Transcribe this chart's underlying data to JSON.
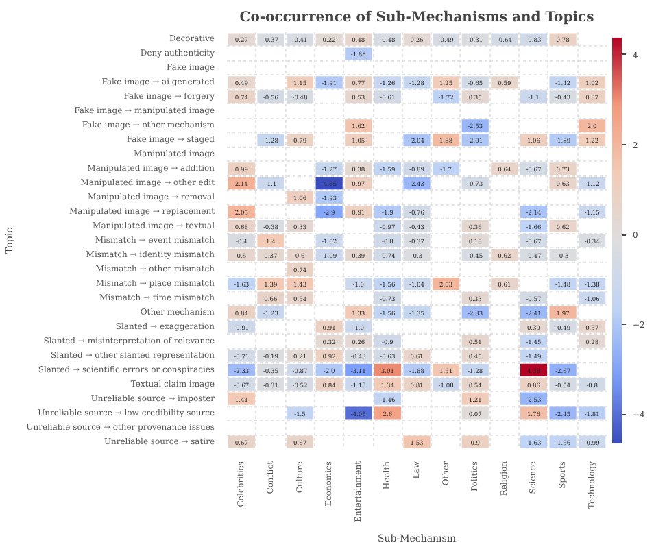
{
  "chart_data": {
    "type": "heatmap",
    "title": "Co-occurrence of Sub-Mechanisms and Topics",
    "xlabel": "Sub-Mechanism",
    "ylabel": "Topic",
    "categories": [
      "Celebrities",
      "Conflict",
      "Culture",
      "Economics",
      "Entertainment",
      "Health",
      "Law",
      "Other",
      "Politics",
      "Religion",
      "Science",
      "Sports",
      "Technology"
    ],
    "y_categories": [
      "Decorative",
      "Deny authenticity",
      "Fake image",
      "Fake image → ai generated",
      "Fake image → forgery",
      "Fake image → manipulated image",
      "Fake image → other mechanism",
      "Fake image → staged",
      "Manipulated image",
      "Manipulated image → addition",
      "Manipulated image → other edit",
      "Manipulated image → removal",
      "Manipulated image → replacement",
      "Manipulated image → textual",
      "Mismatch → event mismatch",
      "Mismatch → identity mismatch",
      "Mismatch → other mismatch",
      "Mismatch → place mismatch",
      "Mismatch → time mismatch",
      "Other mechanism",
      "Slanted → exaggeration",
      "Slanted → misinterpretation of relevance",
      "Slanted → other slanted representation",
      "Slanted → scientific errors or conspiracies",
      "Textual claim image",
      "Unreliable source → imposter",
      "Unreliable source → low credibility source",
      "Unreliable source → other provenance issues",
      "Unreliable source → satire"
    ],
    "cells": [
      [
        0.27,
        -0.37,
        -0.41,
        0.22,
        0.48,
        -0.48,
        0.26,
        -0.49,
        -0.31,
        -0.64,
        -0.83,
        0.78,
        null
      ],
      [
        null,
        null,
        null,
        null,
        -1.88,
        null,
        null,
        null,
        null,
        null,
        null,
        null,
        null
      ],
      [
        null,
        null,
        null,
        null,
        null,
        null,
        null,
        null,
        null,
        null,
        null,
        null,
        null
      ],
      [
        0.49,
        null,
        1.15,
        -1.91,
        0.77,
        -1.26,
        -1.28,
        1.25,
        -0.65,
        0.59,
        null,
        -1.42,
        1.02
      ],
      [
        0.74,
        -0.56,
        -0.48,
        null,
        0.53,
        -0.61,
        null,
        -1.72,
        0.35,
        null,
        -1.1,
        -0.43,
        0.87
      ],
      [
        null,
        null,
        null,
        null,
        null,
        null,
        null,
        null,
        null,
        null,
        null,
        null,
        null
      ],
      [
        null,
        null,
        null,
        null,
        1.62,
        null,
        null,
        null,
        -2.53,
        null,
        null,
        null,
        2.0
      ],
      [
        null,
        -1.28,
        0.79,
        null,
        1.05,
        null,
        -2.04,
        1.88,
        -2.01,
        null,
        1.06,
        -1.89,
        1.22
      ],
      [
        null,
        null,
        null,
        null,
        null,
        null,
        null,
        null,
        null,
        null,
        null,
        null,
        null
      ],
      [
        0.99,
        null,
        null,
        -1.27,
        0.38,
        -1.59,
        -0.89,
        -1.7,
        null,
        0.64,
        -0.67,
        0.73,
        null
      ],
      [
        2.14,
        -1.1,
        null,
        -4.65,
        0.97,
        null,
        -2.43,
        null,
        -0.73,
        null,
        null,
        0.63,
        -1.12
      ],
      [
        null,
        null,
        1.06,
        -1.93,
        null,
        null,
        null,
        null,
        null,
        null,
        null,
        null,
        null
      ],
      [
        2.05,
        null,
        null,
        -2.9,
        0.91,
        -1.9,
        -0.76,
        null,
        null,
        null,
        -2.14,
        null,
        -1.15
      ],
      [
        0.68,
        -0.38,
        0.33,
        null,
        null,
        -0.97,
        -0.43,
        null,
        0.36,
        null,
        -1.66,
        0.62,
        null
      ],
      [
        -0.4,
        1.4,
        null,
        -1.02,
        null,
        -0.8,
        -0.37,
        null,
        0.18,
        null,
        -0.67,
        null,
        -0.34
      ],
      [
        0.5,
        0.37,
        0.6,
        -1.09,
        0.39,
        -0.74,
        -0.3,
        null,
        -0.45,
        0.62,
        -0.47,
        -0.3,
        null
      ],
      [
        null,
        null,
        0.74,
        null,
        null,
        null,
        null,
        null,
        null,
        null,
        null,
        null,
        null
      ],
      [
        -1.63,
        1.39,
        1.43,
        null,
        -1.0,
        -1.56,
        -1.04,
        2.03,
        null,
        0.61,
        null,
        -1.48,
        -1.38
      ],
      [
        null,
        0.66,
        0.54,
        null,
        null,
        -0.73,
        null,
        null,
        0.33,
        null,
        -0.57,
        null,
        -1.06
      ],
      [
        0.84,
        -1.23,
        null,
        null,
        1.33,
        -1.56,
        -1.35,
        null,
        -2.33,
        null,
        -2.41,
        1.97,
        null
      ],
      [
        -0.91,
        null,
        null,
        0.91,
        -1.0,
        null,
        null,
        null,
        null,
        null,
        0.39,
        -0.49,
        0.57
      ],
      [
        null,
        null,
        null,
        0.32,
        0.26,
        -0.9,
        null,
        null,
        0.51,
        null,
        -1.45,
        null,
        0.28
      ],
      [
        -0.71,
        -0.19,
        0.21,
        0.92,
        -0.43,
        -0.63,
        0.61,
        null,
        0.45,
        null,
        -1.49,
        null,
        null
      ],
      [
        -2.33,
        -0.35,
        -0.87,
        -2.0,
        -3.11,
        3.01,
        -1.88,
        1.51,
        -1.28,
        null,
        4.38,
        -2.67,
        null
      ],
      [
        -0.67,
        -0.31,
        -0.52,
        0.84,
        -1.13,
        1.34,
        0.81,
        -1.08,
        0.54,
        null,
        0.86,
        -0.54,
        -0.8
      ],
      [
        1.41,
        null,
        null,
        null,
        null,
        -1.46,
        null,
        null,
        1.21,
        null,
        -2.53,
        null,
        null
      ],
      [
        null,
        null,
        -1.5,
        null,
        -4.05,
        2.6,
        null,
        null,
        0.07,
        null,
        1.76,
        -2.45,
        -1.81
      ],
      [
        null,
        null,
        null,
        null,
        null,
        null,
        null,
        null,
        null,
        null,
        null,
        null,
        null
      ],
      [
        0.67,
        null,
        0.67,
        null,
        null,
        null,
        1.53,
        null,
        0.9,
        null,
        -1.63,
        -1.56,
        -0.99
      ]
    ],
    "cell_labels": [
      [
        "0.27",
        "-0.37",
        "-0.41",
        "0.22",
        "0.48",
        "-0.48",
        "0.26",
        "-0.49",
        "-0.31",
        "-0.64",
        "-0.83",
        "0.78",
        null
      ],
      [
        null,
        null,
        null,
        null,
        "-1.88",
        null,
        null,
        null,
        null,
        null,
        null,
        null,
        null
      ],
      [
        null,
        null,
        null,
        null,
        null,
        null,
        null,
        null,
        null,
        null,
        null,
        null,
        null
      ],
      [
        "0.49",
        null,
        "1.15",
        "-1.91",
        "0.77",
        "-1.26",
        "-1.28",
        "1.25",
        "-0.65",
        "0.59",
        null,
        "-1.42",
        "1.02"
      ],
      [
        "0.74",
        "-0.56",
        "-0.48",
        null,
        "0.53",
        "-0.61",
        null,
        "-1.72",
        "0.35",
        null,
        "-1.1",
        "-0.43",
        "0.87"
      ],
      [
        null,
        null,
        null,
        null,
        null,
        null,
        null,
        null,
        null,
        null,
        null,
        null,
        null
      ],
      [
        null,
        null,
        null,
        null,
        "1.62",
        null,
        null,
        null,
        "-2.53",
        null,
        null,
        null,
        "2.0"
      ],
      [
        null,
        "-1.28",
        "0.79",
        null,
        "1.05",
        null,
        "-2.04",
        "1.88",
        "-2.01",
        null,
        "1.06",
        "-1.89",
        "1.22"
      ],
      [
        null,
        null,
        null,
        null,
        null,
        null,
        null,
        null,
        null,
        null,
        null,
        null,
        null
      ],
      [
        "0.99",
        null,
        null,
        "-1.27",
        "0.38",
        "-1.59",
        "-0.89",
        "-1.7",
        null,
        "0.64",
        "-0.67",
        "0.73",
        null
      ],
      [
        "2.14",
        "-1.1",
        null,
        "-4.65",
        "0.97",
        null,
        "-2.43",
        null,
        "-0.73",
        null,
        null,
        "0.63",
        "-1.12"
      ],
      [
        null,
        null,
        "1.06",
        "-1.93",
        null,
        null,
        null,
        null,
        null,
        null,
        null,
        null,
        null
      ],
      [
        "2.05",
        null,
        null,
        "-2.9",
        "0.91",
        "-1.9",
        "-0.76",
        null,
        null,
        null,
        "-2.14",
        null,
        "-1.15"
      ],
      [
        "0.68",
        "-0.38",
        "0.33",
        null,
        null,
        "-0.97",
        "-0.43",
        null,
        "0.36",
        null,
        "-1.66",
        "0.62",
        null
      ],
      [
        "-0.4",
        "1.4",
        null,
        "-1.02",
        null,
        "-0.8",
        "-0.37",
        null,
        "0.18",
        null,
        "-0.67",
        null,
        "-0.34"
      ],
      [
        "0.5",
        "0.37",
        "0.6",
        "-1.09",
        "0.39",
        "-0.74",
        "-0.3",
        null,
        "-0.45",
        "0.62",
        "-0.47",
        "-0.3",
        null
      ],
      [
        null,
        null,
        "0.74",
        null,
        null,
        null,
        null,
        null,
        null,
        null,
        null,
        null,
        null
      ],
      [
        "-1.63",
        "1.39",
        "1.43",
        null,
        "-1.0",
        "-1.56",
        "-1.04",
        "2.03",
        null,
        "0.61",
        null,
        "-1.48",
        "-1.38"
      ],
      [
        null,
        "0.66",
        "0.54",
        null,
        null,
        "-0.73",
        null,
        null,
        "0.33",
        null,
        "-0.57",
        null,
        "-1.06"
      ],
      [
        "0.84",
        "-1.23",
        null,
        null,
        "1.33",
        "-1.56",
        "-1.35",
        null,
        "-2.33",
        null,
        "-2.41",
        "1.97",
        null
      ],
      [
        "-0.91",
        null,
        null,
        "0.91",
        "-1.0",
        null,
        null,
        null,
        null,
        null,
        "0.39",
        "-0.49",
        "0.57"
      ],
      [
        null,
        null,
        null,
        "0.32",
        "0.26",
        "-0.9",
        null,
        null,
        "0.51",
        null,
        "-1.45",
        null,
        "0.28"
      ],
      [
        "-0.71",
        "-0.19",
        "0.21",
        "0.92",
        "-0.43",
        "-0.63",
        "0.61",
        null,
        "0.45",
        null,
        "-1.49",
        null,
        null
      ],
      [
        "-2.33",
        "-0.35",
        "-0.87",
        "-2.0",
        "-3.11",
        "3.01",
        "-1.88",
        "1.51",
        "-1.28",
        null,
        "4.38",
        "-2.67",
        null
      ],
      [
        "-0.67",
        "-0.31",
        "-0.52",
        "0.84",
        "-1.13",
        "1.34",
        "0.81",
        "-1.08",
        "0.54",
        null,
        "0.86",
        "-0.54",
        "-0.8"
      ],
      [
        "1.41",
        null,
        null,
        null,
        null,
        "-1.46",
        null,
        null,
        "1.21",
        null,
        "-2.53",
        null,
        null
      ],
      [
        null,
        null,
        "-1.5",
        null,
        "-4.05",
        "2.6",
        null,
        null,
        "0.07",
        null,
        "1.76",
        "-2.45",
        "-1.81"
      ],
      [
        null,
        null,
        null,
        null,
        null,
        null,
        null,
        null,
        null,
        null,
        null,
        null,
        null
      ],
      [
        "0.67",
        null,
        "0.67",
        null,
        null,
        null,
        "1.53",
        null,
        "0.9",
        null,
        "-1.63",
        "-1.56",
        "-0.99"
      ]
    ],
    "clim": [
      -4.65,
      4.38
    ],
    "cticks": [
      -4,
      -2,
      0,
      2,
      4
    ],
    "data_labels": true,
    "grid": true
  }
}
